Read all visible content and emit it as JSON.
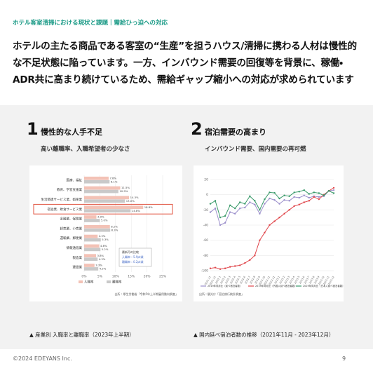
{
  "header": {
    "kicker": "ホテル客室清掃における現状と課題｜需給ひっ迫への対応",
    "headline": [
      "ホテルの主たる商品である客室の“生産”を担うハウス/清掃に携わる人材は慢性的",
      "な不足状態に陥っています。一方、インバウンド需要の回復等を背景に、稼働・",
      "ADR共に高まり続けているため、需給ギャップ縮小への対応が求められています"
    ]
  },
  "sections": [
    {
      "number": "1",
      "title": "慢性的な人手不足",
      "subtitle": "高い離職率、入職希望者の少なさ",
      "caption": "▲ 産業別 入職率と離職率（2023年上半期）",
      "chart": {
        "type": "hbar",
        "categories": [
          "医療、福祉",
          "教育、学習支援業",
          "生活関連サービス業、娯楽業",
          "宿泊業、飲食サービス業",
          "金融業、保険業",
          "卸売業、小売業",
          "運輸業、郵便業",
          "情報通信業",
          "製造業",
          "建設業"
        ],
        "series": [
          {
            "name": "入職率",
            "color": "#f3c2b6",
            "values": [
              7.8,
              11.5,
              14.3,
              18.8,
              3.9,
              8.2,
              4.3,
              4.8,
              3.8,
              3.3
            ],
            "value_labels": [
              "7.8%",
              "11.5%",
              "14.3%",
              "18.8%",
              "3.9%",
              "8.2%",
              "4.3%",
              "4.8%",
              "3.8%",
              "3.3%"
            ]
          },
          {
            "name": "離職率",
            "color": "#c9c9c9",
            "values": [
              8.1,
              10.9,
              13.0,
              14.8,
              5.0,
              8.3,
              5.3,
              5.2,
              4.3,
              4.5
            ],
            "value_labels": [
              "8.1%",
              "10.9%",
              "13.0%",
              "14.8%",
              "5.0%",
              "8.3%",
              "5.3%",
              "5.2%",
              "4.3%",
              "4.5%"
            ]
          }
        ],
        "highlight": 3,
        "highlight_color": "#e0503c",
        "xlim": [
          0,
          25
        ],
        "xticks": [
          {
            "value": 0,
            "label": "0%"
          },
          {
            "value": 5,
            "label": "5%"
          },
          {
            "value": 10,
            "label": "10%"
          },
          {
            "value": 15,
            "label": "15%"
          },
          {
            "value": 20,
            "label": "20%"
          },
          {
            "value": 25,
            "label": "25%"
          }
        ],
        "annotation": [
          "最新月の比較",
          "入職率：5.9pt減",
          "離職率：0.2pt減"
        ],
        "source": "出所：厚生労働省「令和5年上半期雇用動向調査」"
      }
    },
    {
      "number": "2",
      "title": "宿泊需要の高まり",
      "subtitle": "インバウンド需要、国内需要の再可燃",
      "caption": "▲ 国内延べ宿泊者数の推移（2021年11月 - 2023年12月）",
      "chart": {
        "type": "line",
        "categories": [
          "2021.11",
          "2021.12",
          "2022.1",
          "2022.2",
          "2022.3",
          "2022.4",
          "2022.5",
          "2022.6",
          "2022.7",
          "2022.8",
          "2022.9",
          "2022.10",
          "2022.11",
          "2022.12",
          "2023.1",
          "2023.2",
          "2023.3",
          "2023.4",
          "2023.5",
          "2023.6",
          "2023.7",
          "2023.8",
          "2023.9",
          "2023.10",
          "2023.11",
          "2023.12"
        ],
        "series": [
          {
            "name": "2019年同月比（延べ宿泊者数）",
            "color": "#9b8fcb",
            "values": [
              -23,
              -18,
              -40,
              -37,
              -23,
              -25,
              -18,
              -17,
              -10,
              -13,
              -25,
              -12,
              -5,
              -7,
              -12,
              -7,
              -8,
              -3,
              -4,
              -1,
              -4,
              -2,
              -3,
              -2,
              5,
              6
            ]
          },
          {
            "name": "2019年同月比（外国人延べ宿泊者数）",
            "color": "#e0474c",
            "values": [
              -97,
              -96,
              -98,
              -97,
              -95,
              -94,
              -93,
              -90,
              -86,
              -80,
              -60,
              -50,
              -40,
              -35,
              -30,
              -25,
              -20,
              -15,
              -13,
              -10,
              -8,
              -3,
              -6,
              0,
              5,
              9
            ]
          },
          {
            "name": "2019年同月比（日本人延べ宿泊者数）",
            "color": "#3a9a6a",
            "values": [
              -12,
              -8,
              -30,
              -28,
              -14,
              -18,
              -10,
              -12,
              -2,
              -8,
              -20,
              -6,
              3,
              2.4,
              -5,
              -1,
              -2,
              3,
              4,
              6,
              1,
              3,
              2,
              -1,
              5,
              2
            ]
          }
        ],
        "ylim": [
          -100,
          20
        ],
        "yticks": [
          -100,
          -80,
          -60,
          -40,
          -20,
          0,
          20
        ],
        "grid": true,
        "source": "出所：観光庁「宿泊旅行統計調査」"
      }
    }
  ],
  "footer": {
    "copyright": "©2024 EDEYANS Inc.",
    "page": "9"
  }
}
